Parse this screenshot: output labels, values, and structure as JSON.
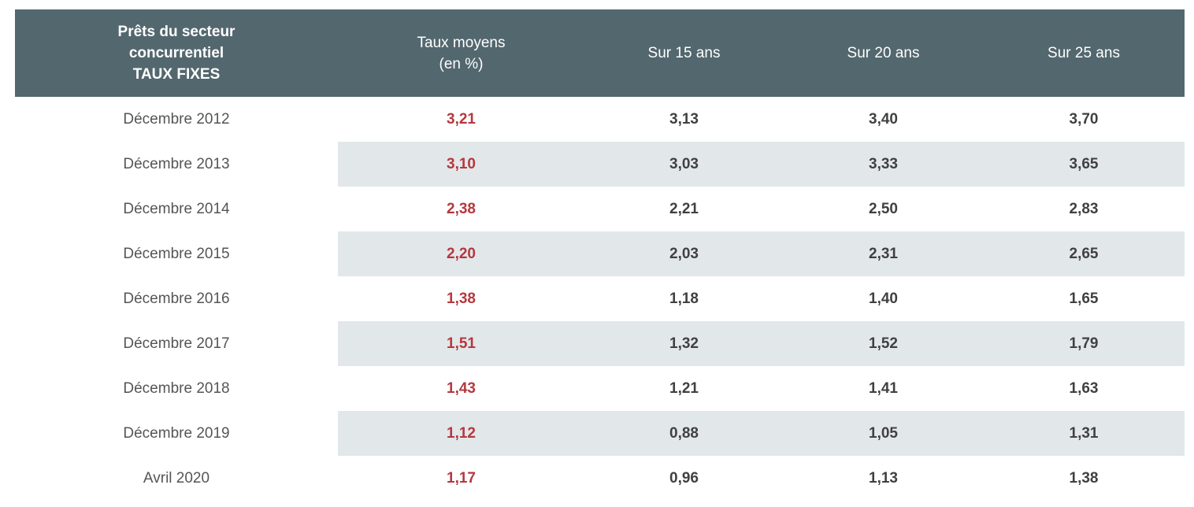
{
  "header": {
    "col0_line1": "Prêts du secteur",
    "col0_line2": "concurrentiel",
    "col0_line3": "TAUX FIXES",
    "col1_line1": "Taux moyens",
    "col1_line2": "(en %)",
    "col2": "Sur 15 ans",
    "col3": "Sur 20 ans",
    "col4": "Sur 25 ans"
  },
  "rows": [
    {
      "period": "Décembre 2012",
      "avg": "3,21",
      "y15": "3,13",
      "y20": "3,40",
      "y25": "3,70"
    },
    {
      "period": "Décembre 2013",
      "avg": "3,10",
      "y15": "3,03",
      "y20": "3,33",
      "y25": "3,65"
    },
    {
      "period": "Décembre 2014",
      "avg": "2,38",
      "y15": "2,21",
      "y20": "2,50",
      "y25": "2,83"
    },
    {
      "period": "Décembre 2015",
      "avg": "2,20",
      "y15": "2,03",
      "y20": "2,31",
      "y25": "2,65"
    },
    {
      "period": "Décembre 2016",
      "avg": "1,38",
      "y15": "1,18",
      "y20": "1,40",
      "y25": "1,65"
    },
    {
      "period": "Décembre 2017",
      "avg": "1,51",
      "y15": "1,32",
      "y20": "1,52",
      "y25": "1,79"
    },
    {
      "period": "Décembre 2018",
      "avg": "1,43",
      "y15": "1,21",
      "y20": "1,41",
      "y25": "1,63"
    },
    {
      "period": "Décembre 2019",
      "avg": "1,12",
      "y15": "0,88",
      "y20": "1,05",
      "y25": "1,31"
    },
    {
      "period": "Avril 2020",
      "avg": "1,17",
      "y15": "0,96",
      "y20": "1,13",
      "y25": "1,38"
    }
  ],
  "colors": {
    "header_bg": "#53676e",
    "stripe_bg": "#e2e7ea",
    "avg_value": "#b5383e"
  }
}
